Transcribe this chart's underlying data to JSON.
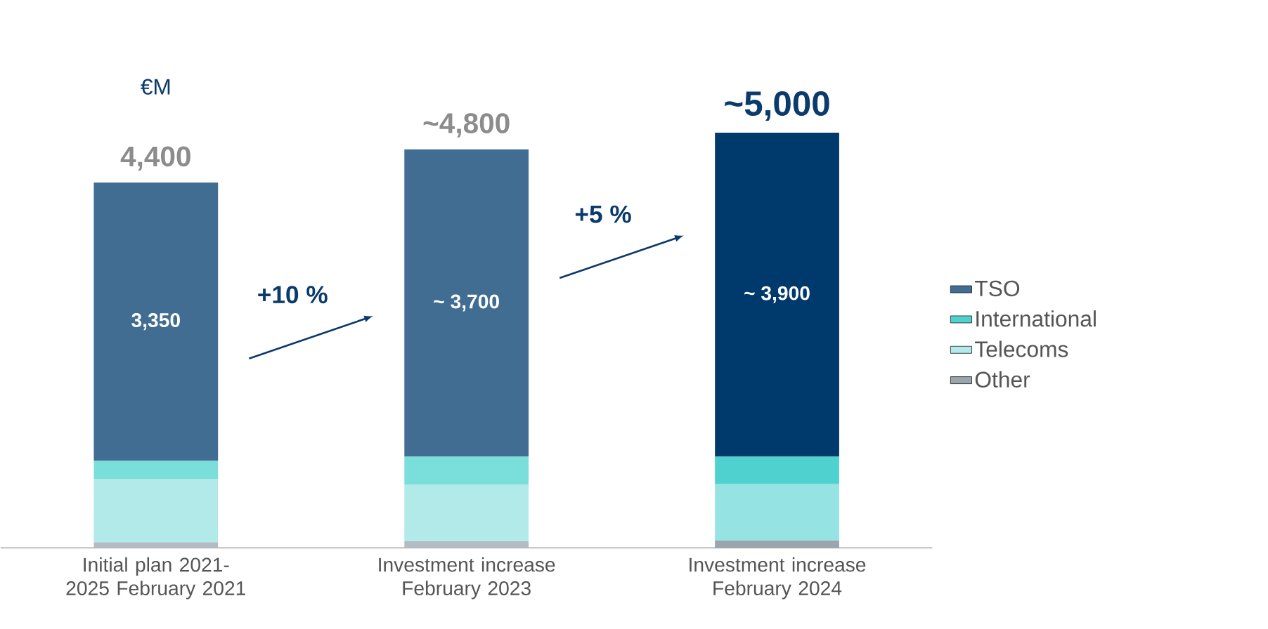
{
  "chart_data": {
    "type": "bar",
    "stacked": true,
    "ylabel": "€M",
    "categories": [
      "Initial plan 2021-2025 February 2021",
      "Investment increase February 2023",
      "Investment increase February 2024"
    ],
    "series": [
      {
        "name": "Other",
        "color": "#9aa5ae",
        "colors": [
          "#b4bcc3",
          "#b4bcc3",
          "#9aa5ae"
        ],
        "values": [
          70,
          80,
          90
        ]
      },
      {
        "name": "Telecoms",
        "color": "#b2eaea",
        "colors": [
          "#b2eaea",
          "#b2eaea",
          "#95e3e3"
        ],
        "values": [
          760,
          680,
          680
        ]
      },
      {
        "name": "International",
        "color": "#4fd1cf",
        "colors": [
          "#7adedb",
          "#7adedb",
          "#4fd1cf"
        ],
        "values": [
          220,
          340,
          330
        ]
      },
      {
        "name": "TSO",
        "color": "#416d92",
        "colors": [
          "#416d92",
          "#416d92",
          "#003a6c"
        ],
        "values": [
          3350,
          3700,
          3900
        ],
        "value_labels": [
          "3,350",
          "~ 3,700",
          "~ 3,900"
        ]
      }
    ],
    "totals": [
      "4,400",
      "~4,800",
      "~5,000"
    ],
    "annotations": [
      "+10 %",
      "+5 %"
    ],
    "legend": "right",
    "tick_labels": "x"
  }
}
